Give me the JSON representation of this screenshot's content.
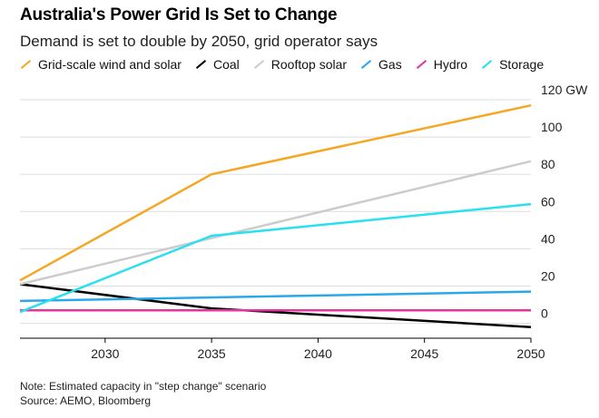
{
  "title": "Australia's Power Grid Is Set to Change",
  "subtitle": "Demand is set to double by 2050, grid operator says",
  "note": "Note: Estimated capacity in \"step change\" scenario",
  "source": "Source: AEMO, Bloomberg",
  "chart_data": {
    "type": "line",
    "title": "Australia's Power Grid Is Set to Change",
    "subtitle": "Demand is set to double by 2050, grid operator says",
    "unit": "GW",
    "x_ticks": [
      2030,
      2035,
      2040,
      2045,
      2050
    ],
    "x_tick_labels": [
      "2030",
      "2035",
      "2040",
      "2045",
      "2050"
    ],
    "y_ticks": [
      0,
      20,
      40,
      60,
      80,
      100,
      120
    ],
    "y_tick_labels": [
      "0",
      "20",
      "40",
      "60",
      "80",
      "100",
      "120 GW"
    ],
    "xlim": [
      2026,
      2050
    ],
    "ylim": [
      -8,
      120
    ],
    "grid": true,
    "legend_position": "top",
    "series": [
      {
        "name": "Grid-scale wind and solar",
        "color": "#f5a623",
        "points": [
          [
            2026,
            23
          ],
          [
            2035,
            80
          ],
          [
            2050,
            117
          ]
        ]
      },
      {
        "name": "Coal",
        "color": "#000000",
        "points": [
          [
            2026,
            21
          ],
          [
            2035,
            8
          ],
          [
            2050,
            -2
          ]
        ]
      },
      {
        "name": "Rooftop solar",
        "color": "#cccccc",
        "points": [
          [
            2026,
            21
          ],
          [
            2050,
            87
          ]
        ]
      },
      {
        "name": "Gas",
        "color": "#2aa8e8",
        "points": [
          [
            2026,
            12
          ],
          [
            2050,
            17
          ]
        ]
      },
      {
        "name": "Hydro",
        "color": "#e8329e",
        "points": [
          [
            2026,
            7
          ],
          [
            2050,
            7
          ]
        ]
      },
      {
        "name": "Storage",
        "color": "#28e0f0",
        "points": [
          [
            2026,
            6
          ],
          [
            2035,
            47
          ],
          [
            2050,
            64
          ]
        ]
      }
    ]
  }
}
